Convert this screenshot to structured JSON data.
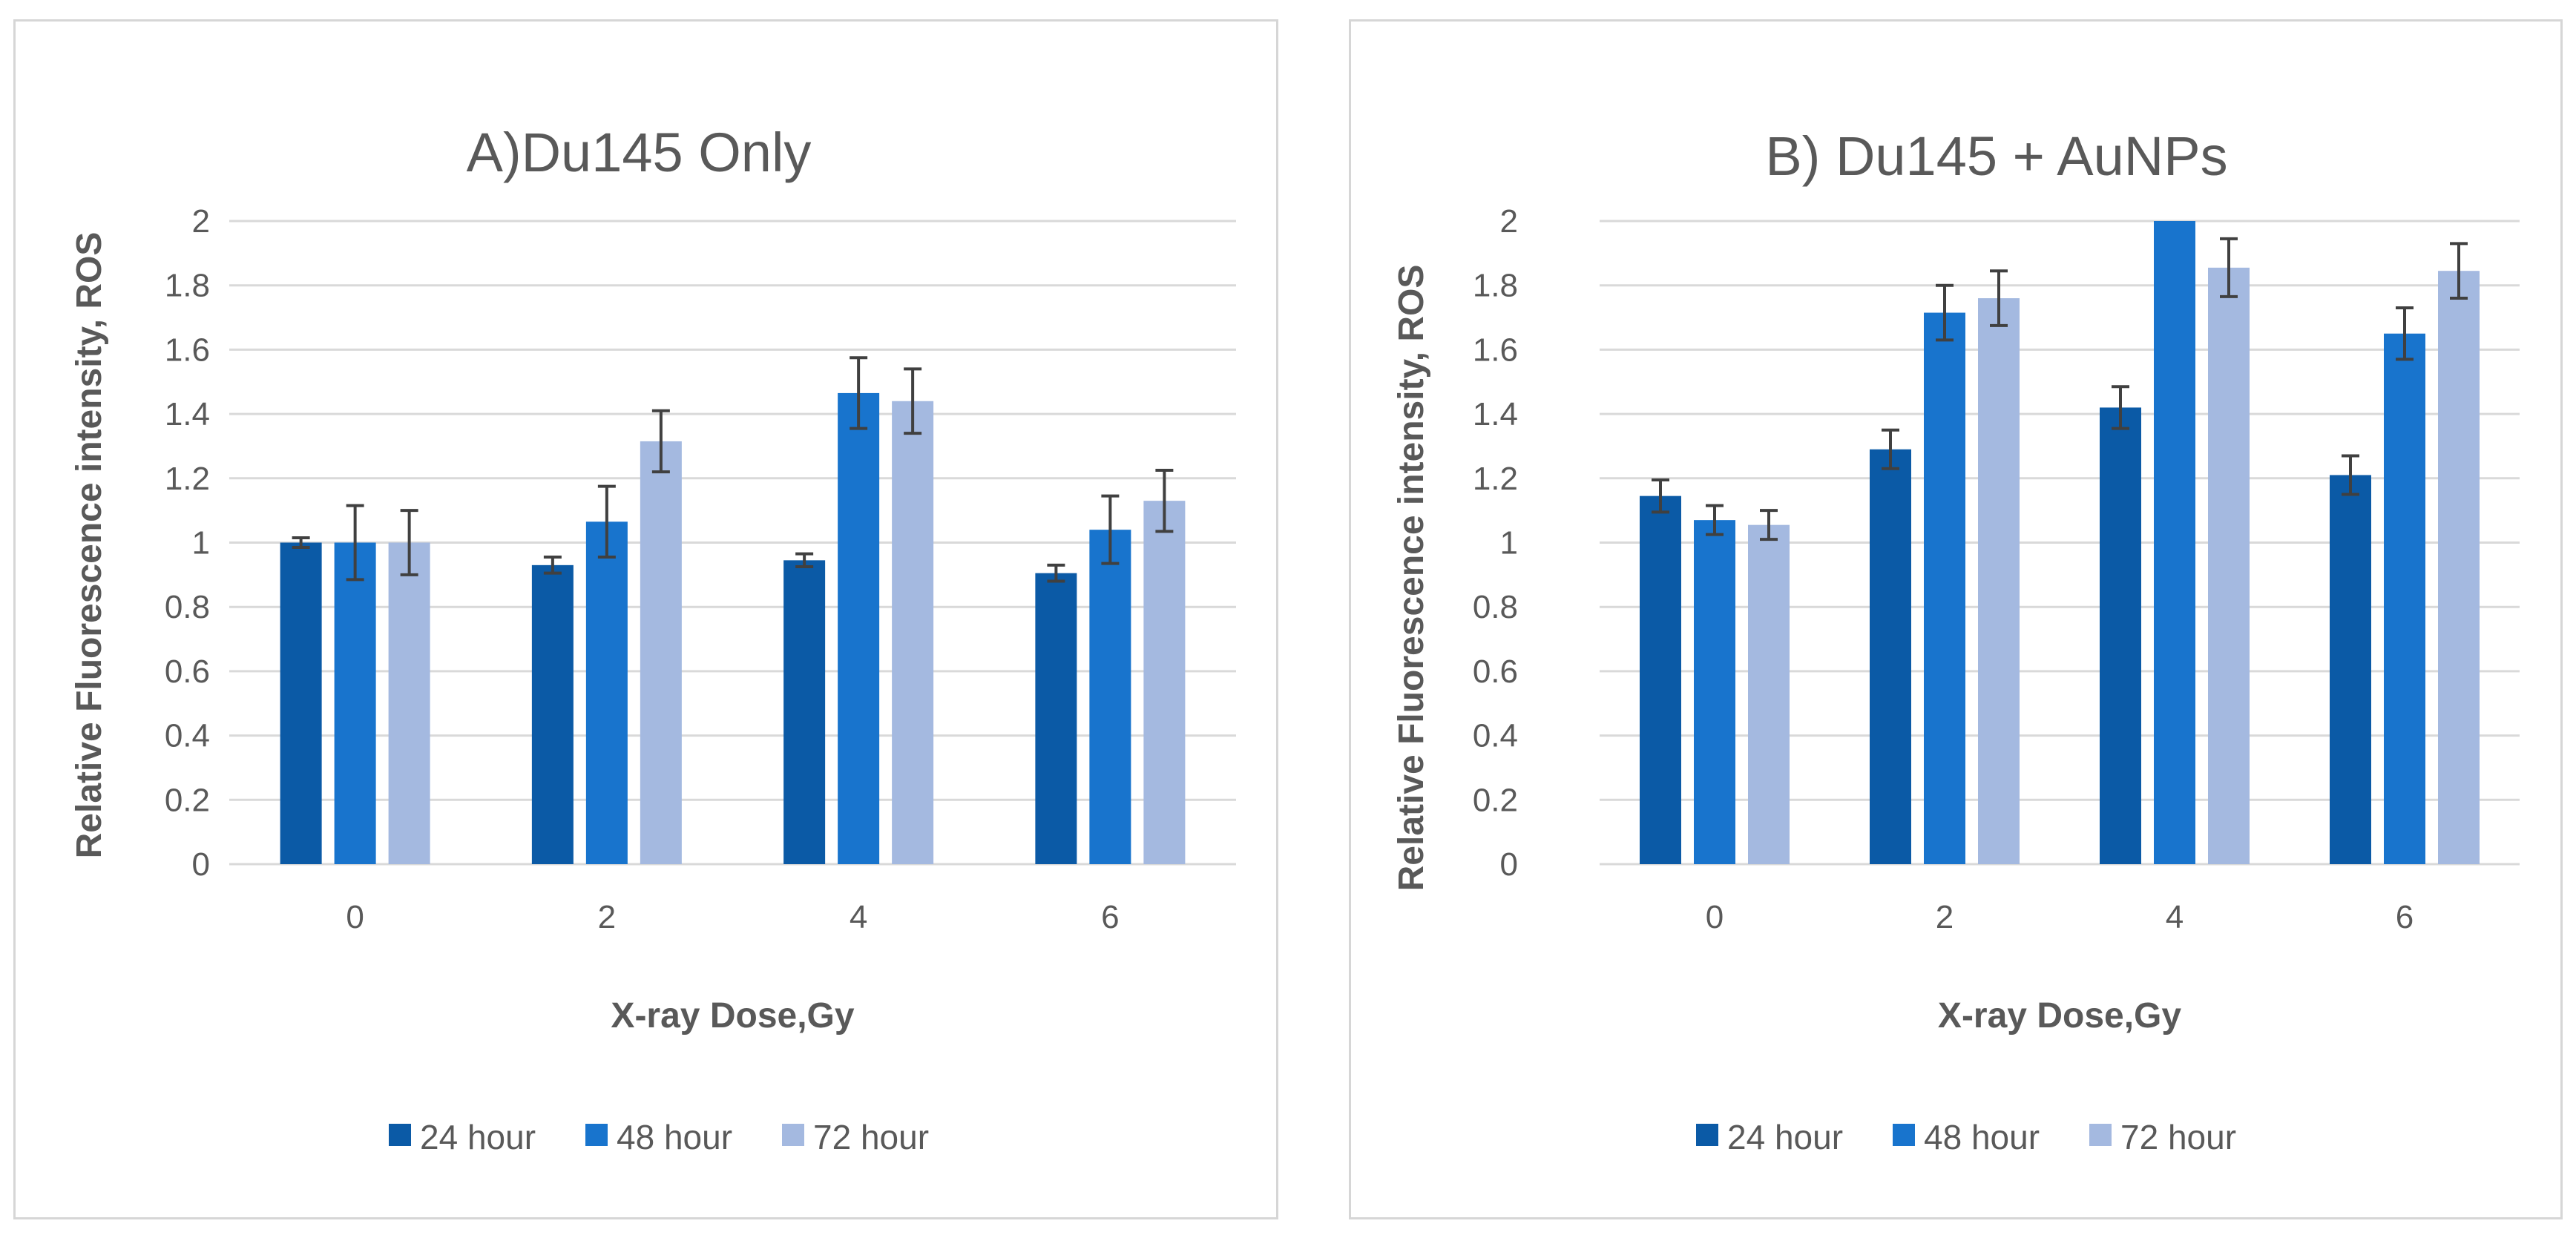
{
  "chart_data": [
    {
      "type": "bar",
      "title": "A)Du145 Only",
      "xlabel": "X-ray Dose,Gy",
      "ylabel": "Relative Fluorescence intensity, ROS",
      "categories": [
        "0",
        "2",
        "4",
        "6"
      ],
      "ylim": [
        0,
        2
      ],
      "yticks": [
        "0",
        "0.2",
        "0.4",
        "0.6",
        "0.8",
        "1",
        "1.2",
        "1.4",
        "1.6",
        "1.8",
        "2"
      ],
      "grid": true,
      "legend_position": "bottom",
      "series": [
        {
          "name": "24 hour",
          "color": "#0b5aa6",
          "values": [
            1.0,
            0.93,
            0.945,
            0.905
          ],
          "errors": [
            0.015,
            0.025,
            0.02,
            0.025
          ]
        },
        {
          "name": "48 hour",
          "color": "#1874cd",
          "values": [
            1.0,
            1.065,
            1.465,
            1.04
          ],
          "errors": [
            0.115,
            0.11,
            0.11,
            0.105
          ]
        },
        {
          "name": "72 hour",
          "color": "#a4b9e0",
          "values": [
            1.0,
            1.315,
            1.44,
            1.13
          ],
          "errors": [
            0.1,
            0.095,
            0.1,
            0.095
          ]
        }
      ]
    },
    {
      "type": "bar",
      "title": "B) Du145 + AuNPs",
      "xlabel": "X-ray Dose,Gy",
      "ylabel": "Relative Fluorescence intensity, ROS",
      "categories": [
        "0",
        "2",
        "4",
        "6"
      ],
      "ylim": [
        0,
        2
      ],
      "yticks": [
        "0",
        "0.2",
        "0.4",
        "0.6",
        "0.8",
        "1",
        "1.2",
        "1.4",
        "1.6",
        "1.8",
        "2"
      ],
      "grid": true,
      "legend_position": "bottom",
      "series": [
        {
          "name": "24 hour",
          "color": "#0b5aa6",
          "values": [
            1.145,
            1.29,
            1.42,
            1.21
          ],
          "errors": [
            0.05,
            0.06,
            0.065,
            0.06
          ]
        },
        {
          "name": "48 hour",
          "color": "#1874cd",
          "values": [
            1.07,
            1.715,
            2.0,
            1.65
          ],
          "errors": [
            0.045,
            0.085,
            0.0,
            0.08
          ]
        },
        {
          "name": "72 hour",
          "color": "#a4b9e0",
          "values": [
            1.055,
            1.76,
            1.855,
            1.845
          ],
          "errors": [
            0.045,
            0.085,
            0.09,
            0.085
          ]
        }
      ]
    }
  ]
}
